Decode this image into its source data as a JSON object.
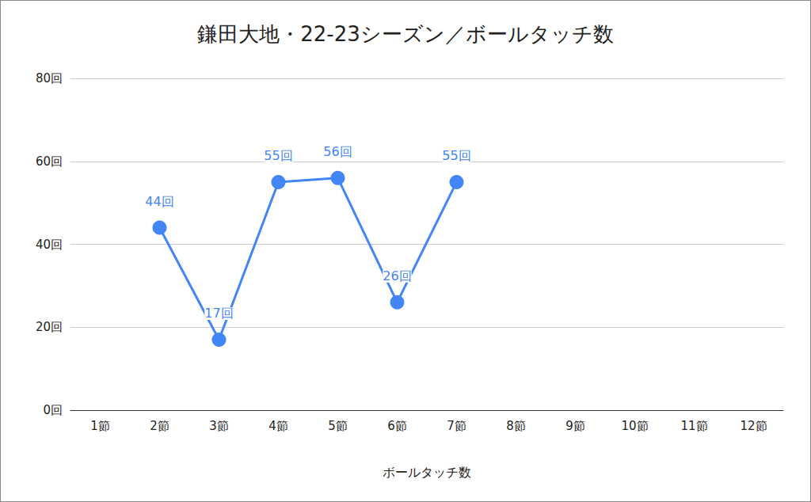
{
  "chart_data": {
    "type": "line",
    "title": "鎌田大地・22-23シーズン／ボールタッチ数",
    "xlabel": "ボールタッチ数",
    "categories": [
      "1節",
      "2節",
      "3節",
      "4節",
      "5節",
      "6節",
      "7節",
      "8節",
      "9節",
      "10節",
      "11節",
      "12節"
    ],
    "values": [
      null,
      44,
      17,
      55,
      56,
      26,
      55,
      null,
      null,
      null,
      null,
      null
    ],
    "value_labels": [
      null,
      "44回",
      "17回",
      "55回",
      "56回",
      "26回",
      "55回",
      null,
      null,
      null,
      null,
      null
    ],
    "color": "#4285f4",
    "marker": "circle",
    "ylim": [
      0,
      80
    ],
    "yticks": [
      {
        "value": 0,
        "label": "0回"
      },
      {
        "value": 20,
        "label": "20回"
      },
      {
        "value": 40,
        "label": "40回"
      },
      {
        "value": 60,
        "label": "60回"
      },
      {
        "value": 80,
        "label": "80回"
      }
    ],
    "grid": true,
    "data_labels": true
  }
}
